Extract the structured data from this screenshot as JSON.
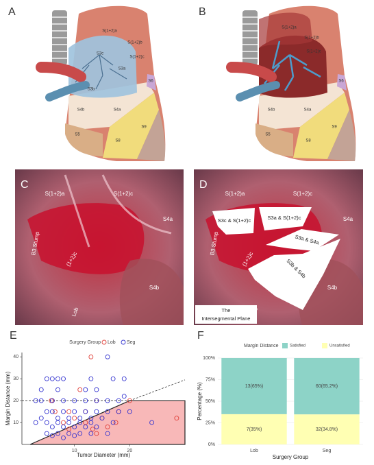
{
  "illustrations": [
    {
      "label": "A",
      "regions": [
        "S(1+2)a",
        "S(1+2)b",
        "S(1+2)c",
        "S3c",
        "S3a",
        "S3b",
        "S4a",
        "S4b",
        "S5",
        "S8",
        "S9",
        "S6"
      ]
    },
    {
      "label": "B",
      "regions": [
        "S(1+2)a",
        "S(1+2)b",
        "S(1+2)c",
        "S6",
        "S4a",
        "S4b",
        "S5",
        "S8",
        "S9"
      ]
    }
  ],
  "photos": [
    {
      "label": "C",
      "labels": [
        "S(1+2)a",
        "S(1+2)c",
        "S4a",
        "B3 Stump",
        "(1+2)c",
        "Lob",
        "S4b"
      ]
    },
    {
      "label": "D",
      "labels": [
        "S(1+2)a",
        "S(1+2)c",
        "S4a",
        "S3c & S(1+2)c",
        "S3a & S(1+2)c",
        "S3a & S4a",
        "S3b & S4b",
        "B3 Stump",
        "(1+2)c",
        "Lob",
        "S4b"
      ],
      "caption": [
        "The",
        "Intersegmental Plane"
      ]
    }
  ],
  "chart_data": [
    {
      "type": "scatter",
      "panel_label": "E",
      "legend_title": "Surgery Group",
      "x_label": "Tumor Diameter (mm)",
      "y_label": "Margin Distance (mm)",
      "xlim": [
        0.5,
        30
      ],
      "ylim": [
        0,
        42
      ],
      "xticks": [
        10,
        20
      ],
      "yticks": [
        10,
        20,
        30,
        40
      ],
      "series": [
        {
          "name": "Lob",
          "color": "#e0403a",
          "x": [
            13,
            5.8,
            20,
            6.5,
            9,
            17.5,
            18,
            13.3,
            12,
            15,
            10,
            28.5,
            11,
            14,
            8,
            16,
            12,
            6,
            9,
            14
          ],
          "values": [
            40,
            20,
            20,
            15,
            15,
            10,
            15,
            7,
            10,
            12,
            12,
            12,
            25,
            20,
            10,
            8,
            15,
            20,
            7,
            5
          ]
        },
        {
          "name": "Seg",
          "color": "#3535d0",
          "x": [
            16,
            5,
            6,
            7,
            8,
            17,
            19,
            14,
            12,
            13,
            3,
            4,
            6,
            8,
            10,
            12,
            14,
            16,
            18,
            7,
            5,
            6,
            8,
            10,
            12,
            14,
            16,
            18,
            4,
            7,
            9,
            11,
            13,
            15,
            3,
            5,
            7,
            9,
            11,
            13,
            17,
            24,
            6,
            8,
            10,
            12,
            14,
            5,
            7,
            9,
            11,
            13,
            6,
            8,
            10,
            16,
            19,
            20,
            4
          ],
          "values": [
            40,
            30,
            30,
            30,
            30,
            30,
            30,
            25,
            25,
            30,
            20,
            20,
            20,
            20,
            20,
            20,
            20,
            20,
            20,
            25,
            15,
            15,
            15,
            15,
            15,
            15,
            15,
            15,
            12,
            12,
            12,
            12,
            12,
            12,
            10,
            10,
            10,
            10,
            10,
            10,
            10,
            10,
            8,
            8,
            8,
            8,
            8,
            5,
            5,
            5,
            5,
            5,
            4,
            3,
            4,
            5,
            22,
            15,
            25
          ]
        }
      ],
      "shaded_region": {
        "color": "#f8b8b8",
        "x": [
          2,
          20,
          30,
          30
        ],
        "y": [
          0,
          20,
          20,
          0
        ]
      },
      "reference_lines": [
        {
          "style": "dashed",
          "x": [
            20,
            30
          ],
          "y": [
            20,
            29.5
          ]
        },
        {
          "style": "dashed",
          "x": [
            0.5,
            20
          ],
          "y": [
            20,
            20
          ]
        }
      ]
    },
    {
      "type": "bar",
      "stacked": true,
      "panel_label": "F",
      "legend_title": "Margin Distance",
      "x_label": "Surgery Group",
      "y_label": "Percentage (%)",
      "categories": [
        "Lob",
        "Seg"
      ],
      "ylim": [
        0,
        100
      ],
      "yticks": [
        {
          "value": 0,
          "label": "0%"
        },
        {
          "value": 25,
          "label": "25%"
        },
        {
          "value": 50,
          "label": "50%"
        },
        {
          "value": 75,
          "label": "75%"
        },
        {
          "value": 100,
          "label": "100%"
        }
      ],
      "series": [
        {
          "name": "Satisfied",
          "color": "#8dd3c7",
          "values": [
            65,
            65.2
          ],
          "value_labels": [
            "13(65%)",
            "60(65.2%)"
          ]
        },
        {
          "name": "Unsatisfied",
          "color": "#ffffb3",
          "values": [
            35,
            34.8
          ],
          "value_labels": [
            "7(35%)",
            "32(34.8%)"
          ]
        }
      ]
    }
  ]
}
